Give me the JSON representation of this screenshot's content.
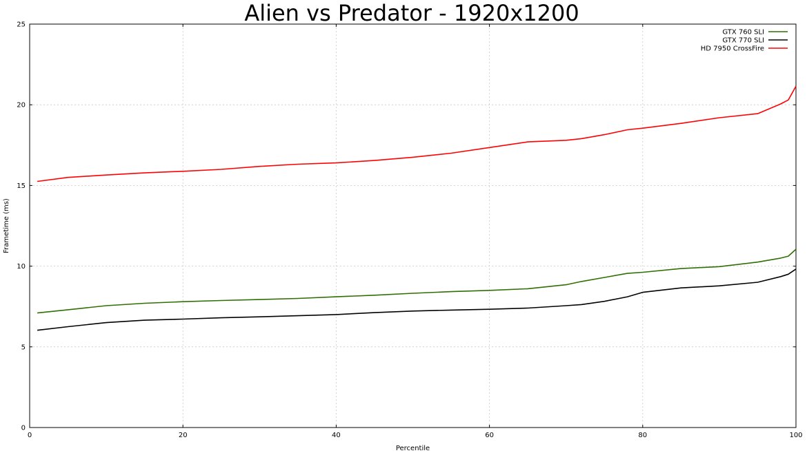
{
  "chart_data": {
    "type": "line",
    "title": "Alien vs Predator - 1920x1200",
    "xlabel": "Percentile",
    "ylabel": "Frametime (ms)",
    "xlim": [
      0,
      100
    ],
    "ylim": [
      0,
      25
    ],
    "xticks": [
      0,
      20,
      40,
      60,
      80,
      100
    ],
    "yticks": [
      0,
      5,
      10,
      15,
      20,
      25
    ],
    "grid": true,
    "legend_position": "top-right",
    "x": [
      1,
      5,
      10,
      15,
      20,
      25,
      30,
      35,
      40,
      45,
      50,
      55,
      60,
      65,
      70,
      72,
      75,
      78,
      80,
      85,
      90,
      95,
      98,
      99,
      100
    ],
    "series": [
      {
        "name": "GTX 760 SLI",
        "color": "#2f6e00",
        "values": [
          7.1,
          7.3,
          7.55,
          7.7,
          7.8,
          7.87,
          7.93,
          8.0,
          8.1,
          8.2,
          8.32,
          8.42,
          8.5,
          8.6,
          8.85,
          9.05,
          9.3,
          9.55,
          9.62,
          9.85,
          9.97,
          10.25,
          10.5,
          10.62,
          11.05
        ]
      },
      {
        "name": "GTX 770 SLI",
        "color": "#000000",
        "values": [
          6.03,
          6.25,
          6.5,
          6.65,
          6.72,
          6.8,
          6.86,
          6.93,
          7.0,
          7.12,
          7.22,
          7.28,
          7.33,
          7.4,
          7.55,
          7.62,
          7.82,
          8.1,
          8.38,
          8.65,
          8.78,
          9.0,
          9.35,
          9.5,
          9.82
        ]
      },
      {
        "name": "HD 7950 CrossFire",
        "color": "#ff0000",
        "values": [
          15.25,
          15.5,
          15.65,
          15.78,
          15.88,
          16.0,
          16.18,
          16.32,
          16.4,
          16.55,
          16.75,
          17.0,
          17.35,
          17.7,
          17.8,
          17.9,
          18.15,
          18.45,
          18.55,
          18.85,
          19.2,
          19.45,
          20.05,
          20.3,
          21.15
        ]
      }
    ]
  }
}
